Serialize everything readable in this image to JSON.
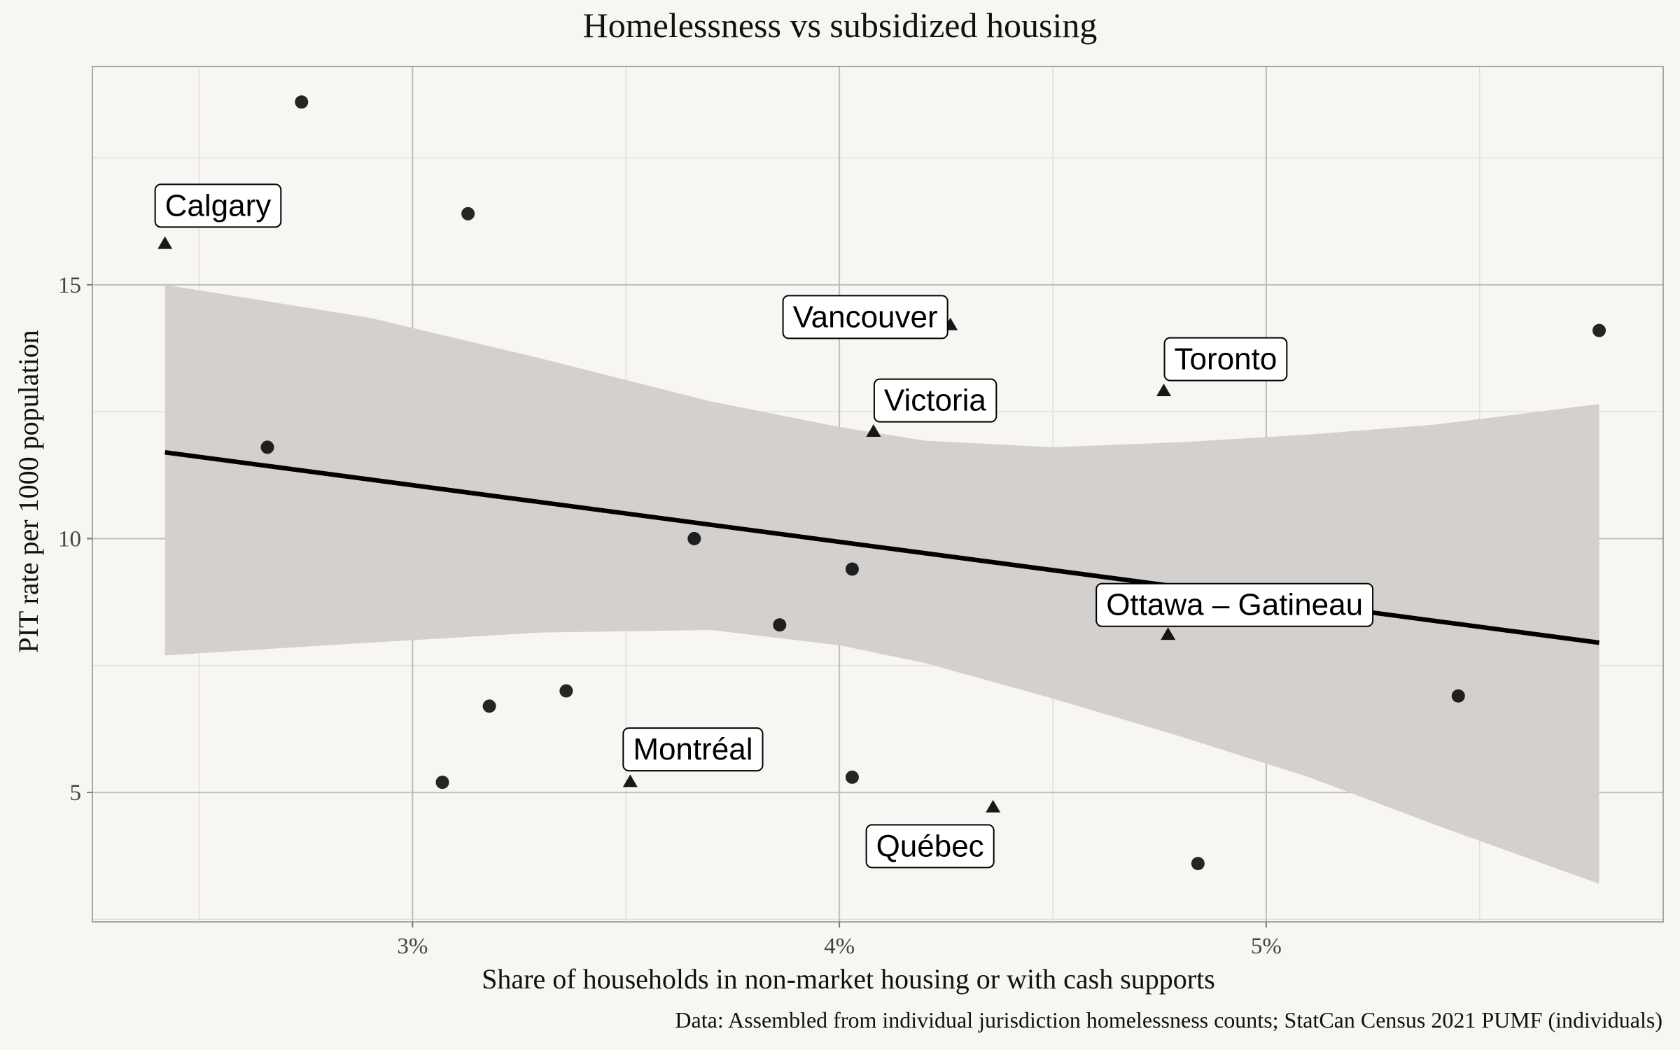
{
  "chart_data": {
    "type": "scatter",
    "title": "Homelessness vs subsidized housing",
    "xlabel": "Share of households in non-market housing or with cash supports",
    "ylabel": "PIT rate per 1000 population",
    "caption": "Data: Assembled from individual jurisdiction homelessness counts; StatCan Census 2021 PUMF (individuals)",
    "xlim": [
      2.25,
      5.93
    ],
    "ylim": [
      2.45,
      19.3
    ],
    "x_ticks": [
      {
        "value": 3,
        "label": "3%"
      },
      {
        "value": 4,
        "label": "4%"
      },
      {
        "value": 5,
        "label": "5%"
      }
    ],
    "y_ticks": [
      {
        "value": 5,
        "label": "5"
      },
      {
        "value": 10,
        "label": "10"
      },
      {
        "value": 15,
        "label": "15"
      }
    ],
    "grid": true,
    "legend": "none",
    "colors": {
      "background": "#f8f6f2",
      "grid_major": "#bdbdbd",
      "grid_minor": "#e1dfdc",
      "ribbon": "#d3d0cd",
      "line": "#000000",
      "points": "#000000"
    },
    "series": [
      {
        "marker": "circle",
        "points": [
          {
            "x": 2.74,
            "y": 18.6
          },
          {
            "x": 3.13,
            "y": 16.4
          },
          {
            "x": 2.66,
            "y": 11.8
          },
          {
            "x": 3.66,
            "y": 10.0
          },
          {
            "x": 4.03,
            "y": 9.4
          },
          {
            "x": 3.86,
            "y": 8.3
          },
          {
            "x": 3.18,
            "y": 6.7
          },
          {
            "x": 3.36,
            "y": 7.0
          },
          {
            "x": 3.07,
            "y": 5.2
          },
          {
            "x": 4.03,
            "y": 5.3
          },
          {
            "x": 4.84,
            "y": 3.6
          },
          {
            "x": 5.45,
            "y": 6.9
          },
          {
            "x": 5.78,
            "y": 14.1
          }
        ]
      },
      {
        "marker": "triangle",
        "points": [
          {
            "x": 2.42,
            "y": 15.8,
            "label": "Calgary"
          },
          {
            "x": 4.26,
            "y": 14.2,
            "label": "Vancouver"
          },
          {
            "x": 4.76,
            "y": 12.9,
            "label": "Toronto"
          },
          {
            "x": 4.08,
            "y": 12.1,
            "label": "Victoria"
          },
          {
            "x": 4.77,
            "y": 8.1,
            "label": "Ottawa – Gatineau"
          },
          {
            "x": 3.51,
            "y": 5.2,
            "label": "Montréal"
          },
          {
            "x": 4.36,
            "y": 4.7,
            "label": "Québec"
          }
        ]
      }
    ],
    "trend_line": {
      "x": [
        2.42,
        5.78
      ],
      "y": [
        11.7,
        7.95
      ]
    },
    "confidence_band": {
      "x": [
        2.42,
        2.9,
        3.3,
        3.7,
        4.0,
        4.2,
        4.5,
        4.8,
        5.1,
        5.4,
        5.78
      ],
      "upper": [
        15.0,
        14.35,
        13.55,
        12.7,
        12.2,
        11.93,
        11.8,
        11.9,
        12.05,
        12.25,
        12.65
      ],
      "lower": [
        7.7,
        7.95,
        8.15,
        8.2,
        7.9,
        7.55,
        6.85,
        6.1,
        5.3,
        4.35,
        3.2
      ]
    }
  }
}
